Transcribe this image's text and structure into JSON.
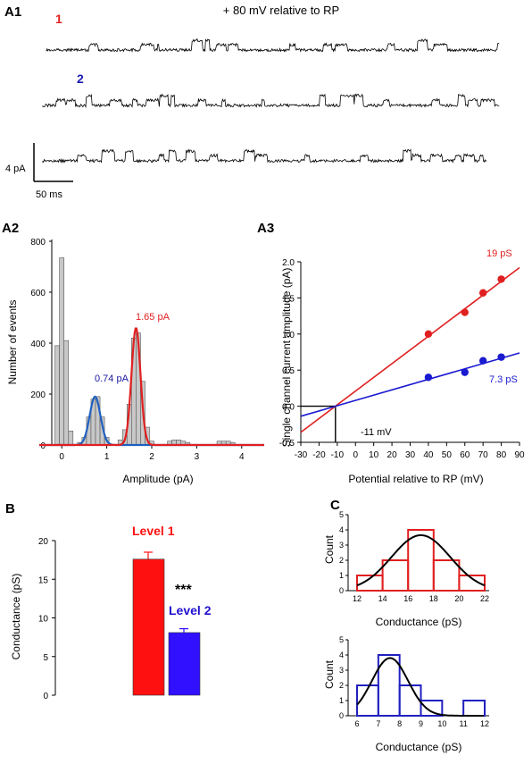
{
  "figure": {
    "panels": {
      "a1": "A1",
      "a2": "A2",
      "a3": "A3",
      "b": "B",
      "c": "C"
    }
  },
  "traces": {
    "title": "+ 80 mV relative to RP",
    "trace1_label": "1",
    "trace2_label": "2",
    "scale_current": "4 pA",
    "scale_time": "50 ms",
    "colors": {
      "label1": "#e02020",
      "label2": "#1a1ab0",
      "trace": "#000000"
    }
  },
  "chart_data": [
    {
      "id": "A2",
      "type": "bar",
      "xlabel": "Amplitude (pA)",
      "ylabel": "Number of events",
      "xlim": [
        -0.5,
        4.5
      ],
      "ylim": [
        0,
        800
      ],
      "xticks": [
        0,
        1,
        2,
        3,
        4
      ],
      "yticks": [
        0,
        200,
        400,
        600,
        800
      ],
      "bin_width": 0.1,
      "bins": [
        {
          "x": -0.1,
          "y": 390
        },
        {
          "x": 0.0,
          "y": 735
        },
        {
          "x": 0.1,
          "y": 410
        },
        {
          "x": 0.2,
          "y": 55
        },
        {
          "x": 0.4,
          "y": 10
        },
        {
          "x": 0.5,
          "y": 30
        },
        {
          "x": 0.6,
          "y": 110
        },
        {
          "x": 0.7,
          "y": 180
        },
        {
          "x": 0.8,
          "y": 190
        },
        {
          "x": 0.9,
          "y": 110
        },
        {
          "x": 1.0,
          "y": 30
        },
        {
          "x": 1.3,
          "y": 20
        },
        {
          "x": 1.4,
          "y": 60
        },
        {
          "x": 1.5,
          "y": 160
        },
        {
          "x": 1.6,
          "y": 420
        },
        {
          "x": 1.7,
          "y": 440
        },
        {
          "x": 1.8,
          "y": 250
        },
        {
          "x": 1.9,
          "y": 70
        },
        {
          "x": 2.0,
          "y": 15
        },
        {
          "x": 2.4,
          "y": 15
        },
        {
          "x": 2.5,
          "y": 20
        },
        {
          "x": 2.6,
          "y": 20
        },
        {
          "x": 2.7,
          "y": 15
        },
        {
          "x": 2.8,
          "y": 10
        },
        {
          "x": 3.5,
          "y": 15
        },
        {
          "x": 3.6,
          "y": 15
        },
        {
          "x": 3.7,
          "y": 15
        },
        {
          "x": 3.8,
          "y": 10
        }
      ],
      "fits": [
        {
          "name": "0.74 pA",
          "mean": 0.74,
          "sd": 0.12,
          "peak": 190,
          "color": "#2060c0"
        },
        {
          "name": "1.65 pA",
          "mean": 1.65,
          "sd": 0.1,
          "peak": 460,
          "color": "#e02020"
        }
      ],
      "fit_labels": [
        "0.74 pA",
        "1.65 pA"
      ]
    },
    {
      "id": "A3",
      "type": "scatter",
      "xlabel": "Potential relative to RP (mV)",
      "ylabel": "Single channel current amplitude (pA)",
      "xlim": [
        -30,
        90
      ],
      "ylim": [
        -0.5,
        2.0
      ],
      "xticks": [
        -30,
        -20,
        -10,
        0,
        10,
        20,
        30,
        40,
        50,
        60,
        70,
        80,
        90
      ],
      "yticks": [
        -0.5,
        0.0,
        0.5,
        1.0,
        1.5,
        2.0
      ],
      "series": [
        {
          "name": "19 pS",
          "color": "#e02020",
          "x": [
            40,
            60,
            70,
            80
          ],
          "y": [
            1.0,
            1.3,
            1.57,
            1.76
          ],
          "slope": 0.019,
          "intercept_x": -11
        },
        {
          "name": "7.3 pS",
          "color": "#1a1ad0",
          "x": [
            40,
            60,
            70,
            80
          ],
          "y": [
            0.4,
            0.47,
            0.63,
            0.68
          ],
          "slope": 0.0073,
          "intercept_x": -11
        }
      ],
      "reversal_label": "-11 mV",
      "reversal_x": -11
    },
    {
      "id": "B",
      "type": "bar",
      "ylabel": "Conductance (pS)",
      "ylim": [
        0,
        20
      ],
      "yticks": [
        0,
        5,
        10,
        15,
        20
      ],
      "categories": [
        "Level 1",
        "Level 2"
      ],
      "values": [
        17.6,
        8.1
      ],
      "errors": [
        0.9,
        0.5
      ],
      "colors": [
        "#ff1010",
        "#3010ff"
      ],
      "significance": "***"
    },
    {
      "id": "C-top",
      "type": "bar",
      "xlabel": "Conductance (pS)",
      "ylabel": "Count",
      "xlim": [
        12,
        22
      ],
      "ylim": [
        0,
        5
      ],
      "xticks": [
        12,
        14,
        16,
        18,
        20,
        22
      ],
      "yticks": [
        0,
        1,
        2,
        3,
        4,
        5
      ],
      "bin_edges": [
        12,
        14,
        16,
        18,
        20,
        22
      ],
      "values": [
        1,
        2,
        4,
        2,
        1
      ],
      "color": "#e02020",
      "fit": {
        "mean": 17,
        "sd": 2.3,
        "peak": 3.65
      }
    },
    {
      "id": "C-bottom",
      "type": "bar",
      "xlabel": "Conductance (pS)",
      "ylabel": "Count",
      "xlim": [
        6,
        12
      ],
      "ylim": [
        0,
        5
      ],
      "xticks": [
        6,
        7,
        8,
        9,
        10,
        11,
        12
      ],
      "yticks": [
        0,
        1,
        2,
        3,
        4,
        5
      ],
      "bin_edges": [
        6,
        7,
        8,
        9,
        10,
        11,
        12
      ],
      "values": [
        2,
        4,
        2,
        1,
        0,
        1
      ],
      "color": "#2020c0",
      "fit": {
        "mean": 7.55,
        "sd": 0.85,
        "peak": 3.8
      }
    }
  ]
}
